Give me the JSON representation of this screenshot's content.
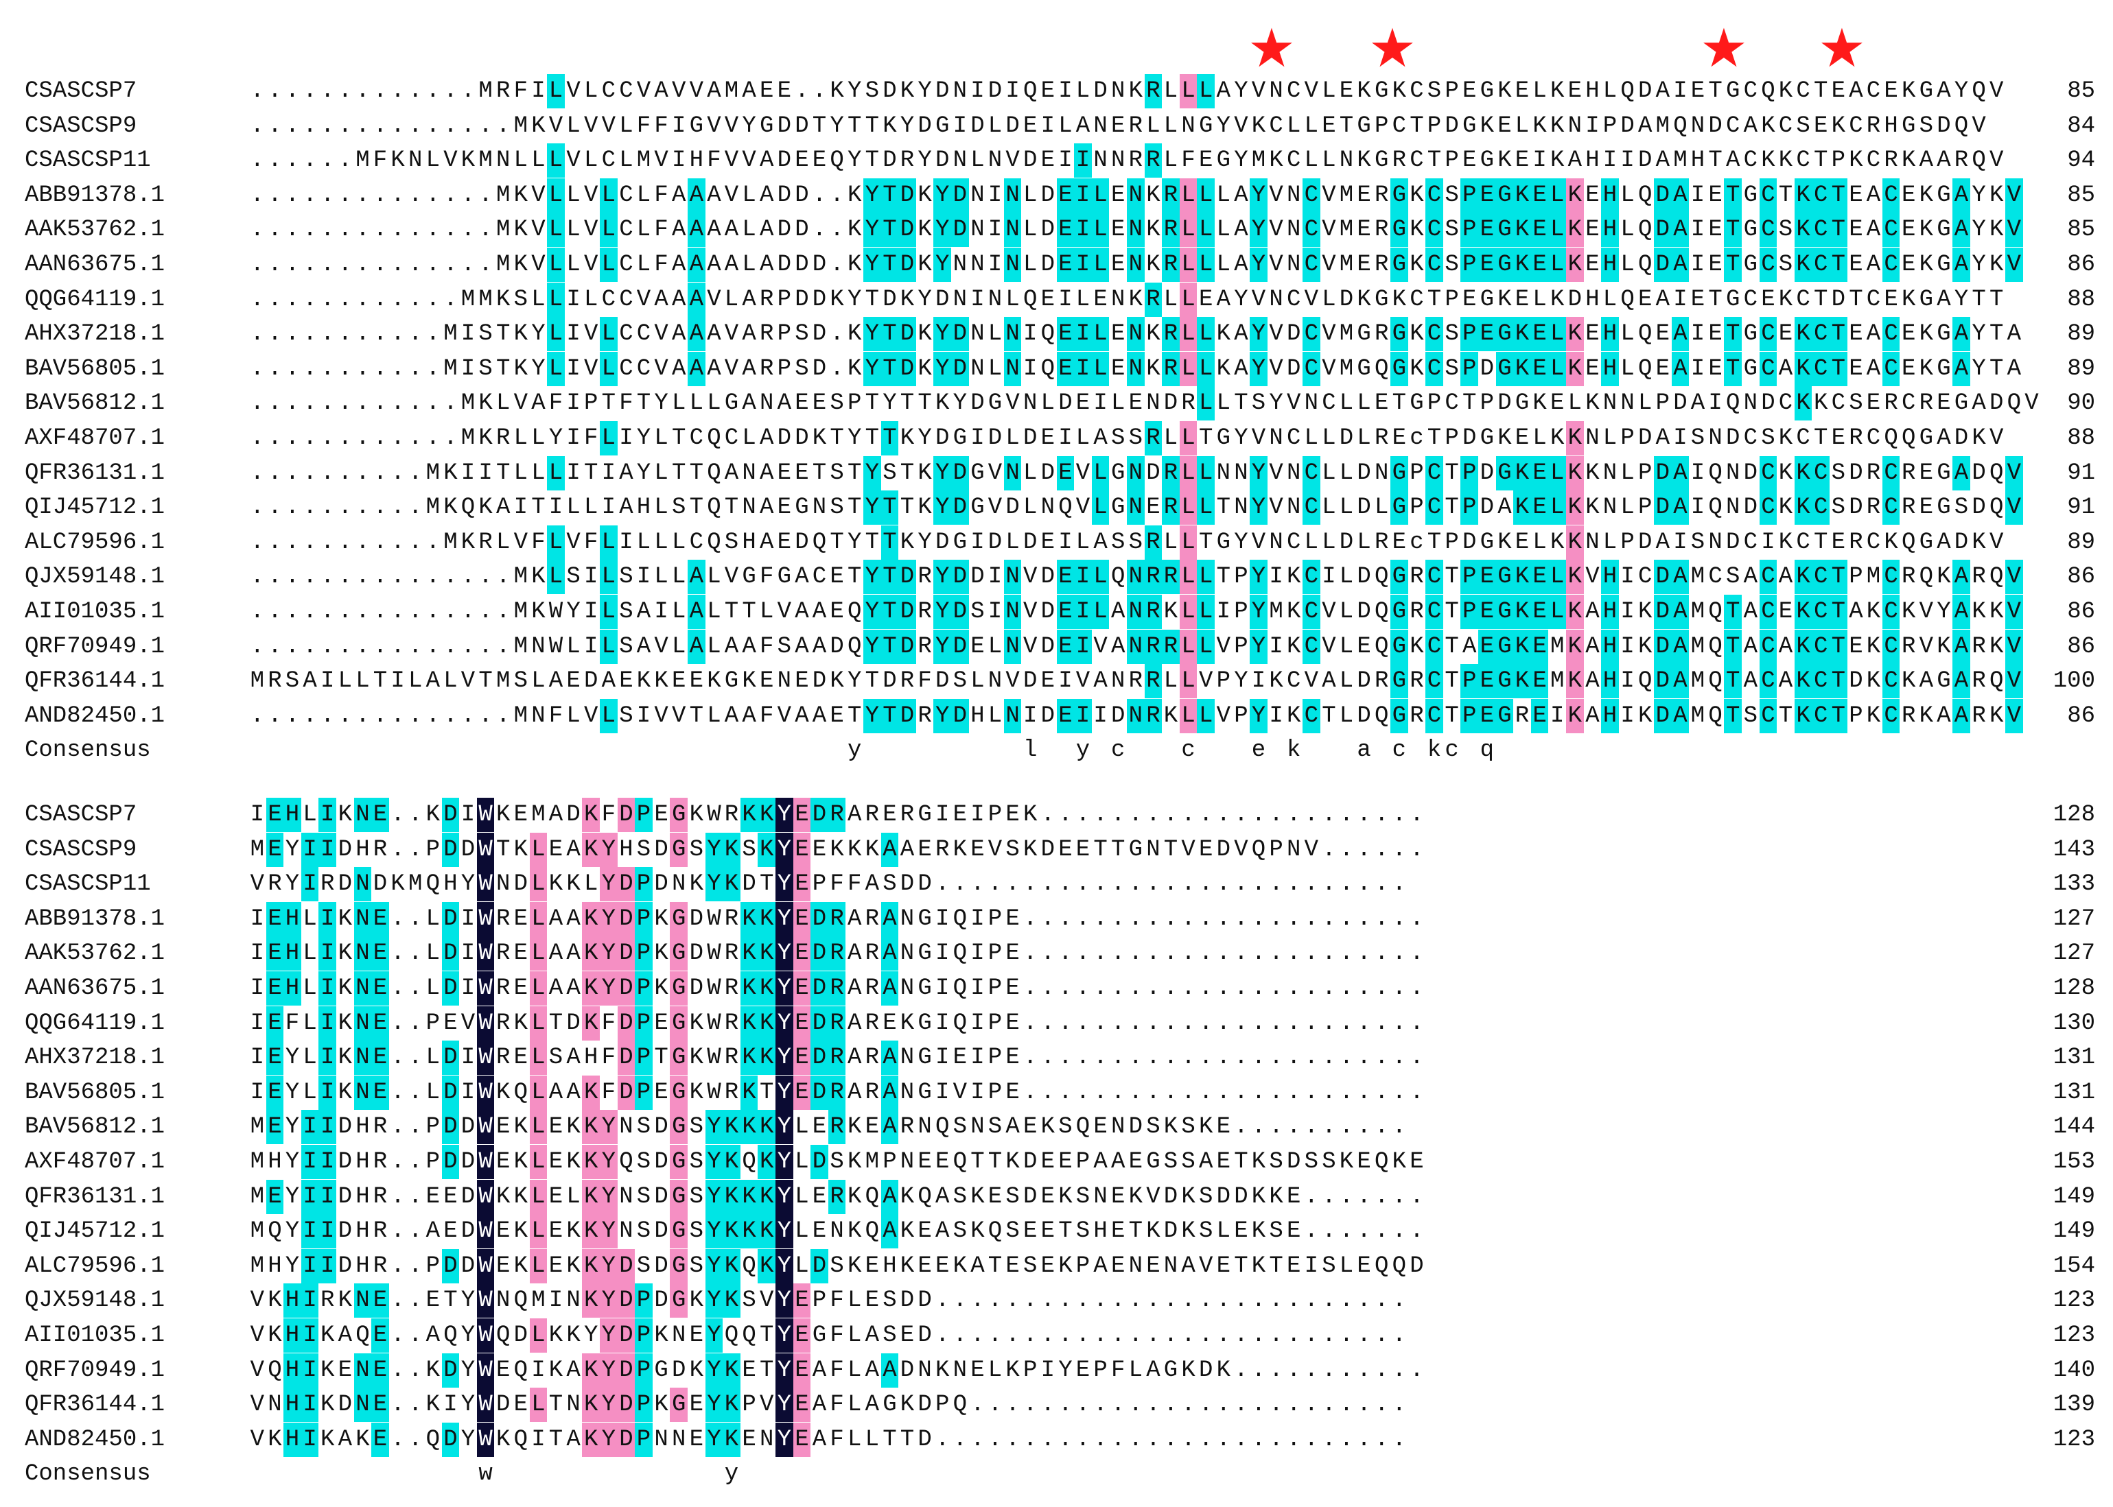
{
  "markers": [
    {
      "icon": "red-star-icon",
      "color": "#ff1a1a",
      "column": 29
    },
    {
      "icon": "red-star-icon",
      "color": "#ff1a1a",
      "column": 33
    },
    {
      "icon": "red-star-icon",
      "color": "#ff1a1a",
      "column": 43
    },
    {
      "icon": "red-star-icon",
      "color": "#ff1a1a",
      "column": 46
    }
  ],
  "colors": {
    "identity_100": "#0b0b33",
    "identity_high": "#f58fc3",
    "identity_mid": "#00e5e5"
  },
  "blocks": [
    {
      "rows": [
        {
          "name": "CSASCSP7",
          "seq": ".............MRFILVLCCVAVVAMAEE..KYSDKYDNIDIQEILDNKRLLLAYVNCVLEKGKCSPEGKELKEHLQDAIETGCQKCTEACEKGAYQV",
          "end": "85"
        },
        {
          "name": "CSASCSP9",
          "seq": "...............MKVLVVLFFIGVVYGDDTYTTKYDGIDLDEILANERLLNGYVKCLLETGPCTPDGKELKKNIPDAMQNDCAKCSEKCRHGSDQV",
          "end": "84"
        },
        {
          "name": "CSASCSP11",
          "seq": "......MFKNLVKMNLLLVLCLMVIHFVVADEEQYTDRYDNLNVDEIINNRRLFEGYMKCLLNKGRCTPEGKEIKAHIIDAMHTACKKCTPKCRKAARQV",
          "end": "94"
        },
        {
          "name": "ABB91378.1",
          "seq": "..............MKVLLVLCLFAAAVLADD..KYTDKYDNINLDEILENKRLLLAYVNCVMERGKCSPEGKELKEHLQDAIETGCTKCTEACEKGAYKV",
          "end": "85"
        },
        {
          "name": "AAK53762.1",
          "seq": "..............MKVLLVLCLFAAAALADD..KYTDKYDNINLDEILENKRLLLAYVNCVMERGKCSPEGKELKEHLQDAIETGCSKCTEACEKGAYKV",
          "end": "85"
        },
        {
          "name": "AAN63675.1",
          "seq": "..............MKVLLVLCLFAAAALADDD.KYTDKYNNINLDEILENKRLLLAYVNCVMERGKCSPEGKELKEHLQDAIETGCSKCTEACEKGAYKV",
          "end": "86"
        },
        {
          "name": "QQG64119.1",
          "seq": "............MMKSLLILCCVAAAVLARPDDKYTDKYDNINLQEILENKRLLEAYVNCVLDKGKCTPEGKELKDHLQEAIETGCEKCTDTCEKGAYTT",
          "end": "88"
        },
        {
          "name": "AHX37218.1",
          "seq": "...........MISTKYLIVLCCVAAAVARPSD.KYTDKYDNLNIQEILENKRLLKAYVDCVMGRGKCSPEGKELKEHLQEAIETGCEKCTEACEKGAYTA",
          "end": "89"
        },
        {
          "name": "BAV56805.1",
          "seq": "...........MISTKYLIVLCCVAAAVARPSD.KYTDKYDNLNIQEILENKRLLKAYVDCVMGQGKCSPDGKELKEHLQEAIETGCAKCTEACEKGAYTA",
          "end": "89"
        },
        {
          "name": "BAV56812.1",
          "seq": "............MKLVAFIPTFTYLLLGANAEESPTYTTKYDGVNLDEILENDRLLTSYVNCLLETGPCTPDGKELKNNLPDAIQNDCKKCSERCREGADQV",
          "end": "90"
        },
        {
          "name": "AXF48707.1",
          "seq": "............MKRLLYIFLIYLTCQCLADDKTYTTKYDGIDLDEILASSRLLTGYVNCLLDLREcTPDGKELKKNLPDAISNDCSKCTERCQQGADKV",
          "end": "88"
        },
        {
          "name": "QFR36131.1",
          "seq": "..........MKIITLLLITIAYLTTQANAEETSTYSTKYDGVNLDEVLGNDRLLNNYVNCLLDNGPCTPDGKELKKNLPDAIQNDCKKCSDRCREGADQV",
          "end": "91"
        },
        {
          "name": "QIJ45712.1",
          "seq": "..........MKQKAITILLIAHLSTQTNAEGNSTYTTKYDGVDLNQVLGNERLLTNYVNCLLDLGPCTPDAKELKKNLPDAIQNDCKKCSDRCREGSDQV",
          "end": "91"
        },
        {
          "name": "ALC79596.1",
          "seq": "...........MKRLVFLVFLILLLCQSHAEDQTYTTKYDGIDLDEILASSRLLTGYVNCLLDLREcTPDGKELKKNLPDAISNDCIKCTERCKQGADKV",
          "end": "89"
        },
        {
          "name": "QJX59148.1",
          "seq": "...............MKLSILSILLALVGFGACETYTDRYDDINVDEILQNRRLLTPYIKCILDQGRCTPEGKELKVHICDAMCSACAKCTPMCRQKARQV",
          "end": "86"
        },
        {
          "name": "AII01035.1",
          "seq": "...............MKWYILSAILALTTLVAAEQYTDRYDSINVDEILANRKLLIPYMKCVLDQGRCTPEGKELKAHIKDAMQTACEKCTAKCKVYAKKV",
          "end": "86"
        },
        {
          "name": "QRF70949.1",
          "seq": "...............MNWLILSAVLALAAFSAADQYTDRYDELNVDEIVANRRLLVPYIKCVLEQGKCTAEGKEMKAHIKDAMQTACAKCTEKCRVKARKV",
          "end": "86"
        },
        {
          "name": "QFR36144.1",
          "seq": "MRSAILLTILALVTMSLAEDAEKKEEKGKENEDKYTDRFDSLNVDEIVANRRLLVPYIKCVALDRGRCTPEGKEMKAHIQDAMQTACAKCTDKCKAGARQV",
          "end": "100"
        },
        {
          "name": "AND82450.1",
          "seq": "...............MNFLVLSIVVTLAAFVAAETYTDRYDHLNIDEIIDNRKLLVPYIKCTLDQGRCTPEGREIKAHIKDAMQTSCTKCTPKCRKAARKV",
          "end": "86"
        },
        {
          "name": "Consensus",
          "seq": "                                  y         l  y c   c   e k   a c kc q",
          "end": ""
        }
      ]
    },
    {
      "rows": [
        {
          "name": "CSASCSP7",
          "seq": "IEHLIKNE..KDIWKEMADKFDPEGKWRKKYEDRARERGIEIPEK......................",
          "end": "128"
        },
        {
          "name": "CSASCSP9",
          "seq": "MEYIIDHR..PDDWTKLEAKYHSDGSYKSKYEEKKKAAERKEVSKDEETTGNTVEDVQPNV......",
          "end": "143"
        },
        {
          "name": "CSASCSP11",
          "seq": "VRYIRDNDKMQHYWNDLKKLYDPDNKYKDTYEPFFASDD...........................",
          "end": "133"
        },
        {
          "name": "ABB91378.1",
          "seq": "IEHLIKNE..LDIWRELAAKYDPKGDWRKKYEDRARANGIQIPE.......................",
          "end": "127"
        },
        {
          "name": "AAK53762.1",
          "seq": "IEHLIKNE..LDIWRELAAKYDPKGDWRKKYEDRARANGIQIPE.......................",
          "end": "127"
        },
        {
          "name": "AAN63675.1",
          "seq": "IEHLIKNE..LDIWRELAAKYDPKGDWRKKYEDRARANGIQIPE.......................",
          "end": "128"
        },
        {
          "name": "QQG64119.1",
          "seq": "IEFLIKNE..PEVWRKLTDKFDPEGKWRKKYEDRAREKGIQIPE.......................",
          "end": "130"
        },
        {
          "name": "AHX37218.1",
          "seq": "IEYLIKNE..LDIWRELSAHFDPTGKWRKKYEDRARANGIEIPE.......................",
          "end": "131"
        },
        {
          "name": "BAV56805.1",
          "seq": "IEYLIKNE..LDIWKQLAAKFDPEGKWRKTYEDRARANGIVIPE.......................",
          "end": "131"
        },
        {
          "name": "BAV56812.1",
          "seq": "MEYIIDHR..PDDWEKLEKKYNSDGSYKKKYLERKEARNQSNSAEKSQENDSKSKE..........",
          "end": "144"
        },
        {
          "name": "AXF48707.1",
          "seq": "MHYIIDHR..PDDWEKLEKKYQSDGSYKQKYLDSKMPNEEQTTKDEEPAAEGSSAETKSDSSKEQKE",
          "end": "153"
        },
        {
          "name": "QFR36131.1",
          "seq": "MEYIIDHR..EEDWKKLELKYNSDGSYKKKYLERKQAKQASKESDEKSNEKVDKSDDKKE.......",
          "end": "149"
        },
        {
          "name": "QIJ45712.1",
          "seq": "MQYIIDHR..AEDWEKLEKKYNSDGSYKKKYLENKQAKEASKQSEETSHETKDKSLEKSE.......",
          "end": "149"
        },
        {
          "name": "ALC79596.1",
          "seq": "MHYIIDHR..PDDWEKLEKKYDSDGSYKQKYLDSKEHKEEKATESEKPAENENAVETKTEISLEQQD",
          "end": "154"
        },
        {
          "name": "QJX59148.1",
          "seq": "VKHIRKNE..ETYWNQMINKYDPDGKYKSVYEPFLESDD...........................",
          "end": "123"
        },
        {
          "name": "AII01035.1",
          "seq": "VKHIKAQE..AQYWQDLKKYYDPKNEYQQTYEGFLASED...........................",
          "end": "123"
        },
        {
          "name": "QRF70949.1",
          "seq": "VQHIKENE..KDYWEQIKAKYDPGDKYKETYEAFLAADNKNELKPIYEPFLAGKDK...........",
          "end": "140"
        },
        {
          "name": "QFR36144.1",
          "seq": "VNHIKDNE..KIYWDELTNKYDPKGEYKPVYEAFLAGKDPQ.........................",
          "end": "139"
        },
        {
          "name": "AND82450.1",
          "seq": "VKHIKAKE..QDYWKQITAKYDPNNEYKENYEAFLLTTD...........................",
          "end": "123"
        },
        {
          "name": "Consensus",
          "seq": "             w             y",
          "end": ""
        }
      ]
    }
  ]
}
